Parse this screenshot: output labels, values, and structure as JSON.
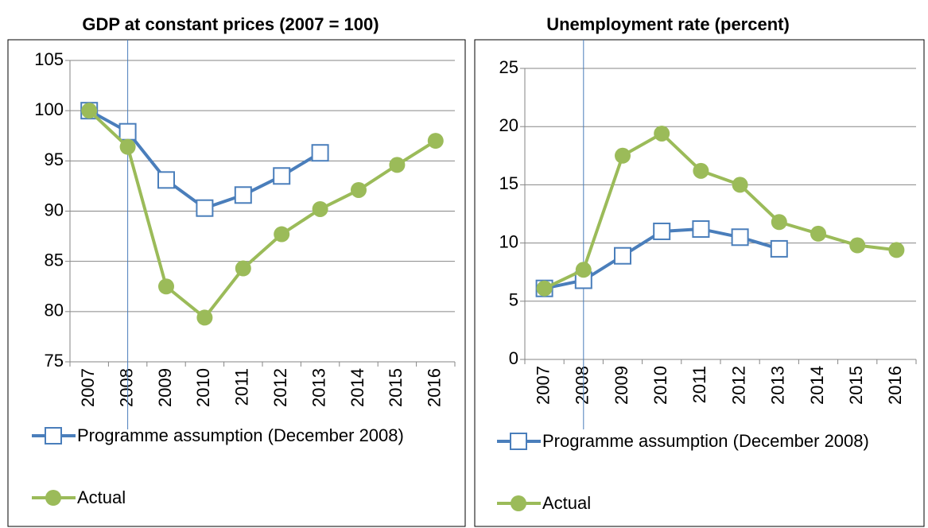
{
  "chart_data": [
    {
      "type": "line",
      "title": "GDP at constant prices (2007 = 100)",
      "categories": [
        "2007",
        "2008",
        "2009",
        "2010",
        "2011",
        "2012",
        "2013",
        "2014",
        "2015",
        "2016"
      ],
      "series": [
        {
          "name": "Programme assumption (December 2008)",
          "color": "#4a7ebb",
          "marker": "square",
          "values": [
            100,
            97.9,
            93.1,
            90.3,
            91.6,
            93.5,
            95.8,
            null,
            null,
            null
          ]
        },
        {
          "name": "Actual",
          "color": "#9bbb59",
          "marker": "circle",
          "values": [
            100,
            96.4,
            82.5,
            79.4,
            84.3,
            87.7,
            90.2,
            92.1,
            94.6,
            97.0
          ]
        }
      ],
      "ylim": [
        75,
        105
      ],
      "yticks": [
        75,
        80,
        85,
        90,
        95,
        100,
        105
      ],
      "grid": true
    },
    {
      "type": "line",
      "title": "Unemployment rate (percent)",
      "categories": [
        "2007",
        "2008",
        "2009",
        "2010",
        "2011",
        "2012",
        "2013",
        "2014",
        "2015",
        "2016"
      ],
      "series": [
        {
          "name": "Programme assumption (December 2008)",
          "color": "#4a7ebb",
          "marker": "square",
          "values": [
            6.1,
            6.8,
            8.9,
            11.0,
            11.2,
            10.5,
            9.5,
            null,
            null,
            null
          ]
        },
        {
          "name": "Actual",
          "color": "#9bbb59",
          "marker": "circle",
          "values": [
            6.1,
            7.7,
            17.5,
            19.4,
            16.2,
            15.0,
            11.8,
            10.8,
            9.8,
            9.4
          ]
        }
      ],
      "ylim": [
        0,
        25
      ],
      "yticks": [
        0,
        5,
        10,
        15,
        20,
        25
      ],
      "grid": true
    }
  ]
}
